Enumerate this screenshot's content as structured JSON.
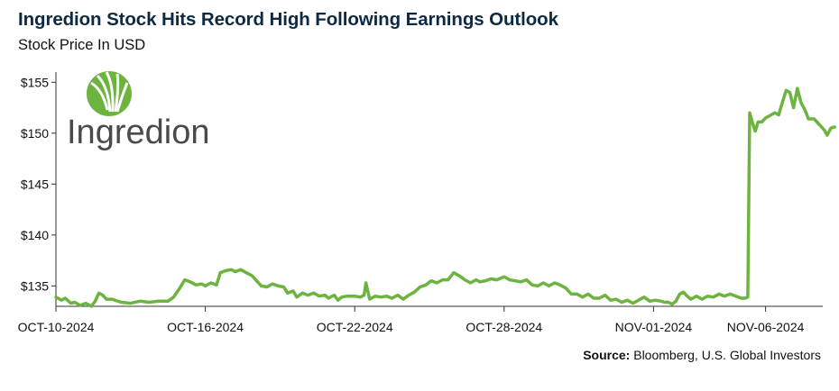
{
  "chart_data": {
    "type": "line",
    "title": "Ingredion Stock Hits Record High Following Earnings Outlook",
    "subtitle": "Stock Price In USD",
    "ylim": [
      133,
      156
    ],
    "yticks": [
      135,
      140,
      145,
      150,
      155
    ],
    "ytick_labels": [
      "$135",
      "$140",
      "$145",
      "$150",
      "$155"
    ],
    "xlim": [
      0,
      40
    ],
    "xtick_positions": [
      0,
      8,
      16,
      24,
      32,
      38
    ],
    "xtick_labels": [
      "OCT-10-2024",
      "OCT-16-2024",
      "OCT-22-2024",
      "OCT-28-2024",
      "NOV-01-2024",
      "NOV-06-2024"
    ],
    "grid": false,
    "line_color": "#6db33f",
    "series": [
      {
        "values": [
          [
            0.0,
            133.9
          ],
          [
            0.3,
            133.6
          ],
          [
            0.5,
            133.8
          ],
          [
            0.8,
            133.3
          ],
          [
            1.0,
            133.4
          ],
          [
            1.3,
            133.1
          ],
          [
            1.6,
            133.3
          ],
          [
            1.9,
            133.0
          ],
          [
            2.1,
            133.5
          ],
          [
            2.3,
            134.3
          ],
          [
            2.5,
            134.1
          ],
          [
            2.7,
            133.7
          ],
          [
            3.0,
            133.7
          ],
          [
            3.5,
            133.4
          ],
          [
            4.0,
            133.3
          ],
          [
            4.5,
            133.5
          ],
          [
            5.0,
            133.4
          ],
          [
            5.5,
            133.5
          ],
          [
            6.0,
            133.5
          ],
          [
            6.3,
            133.9
          ],
          [
            6.6,
            134.7
          ],
          [
            6.9,
            135.6
          ],
          [
            7.2,
            135.4
          ],
          [
            7.5,
            135.1
          ],
          [
            7.8,
            135.2
          ],
          [
            8.0,
            135.0
          ],
          [
            8.3,
            135.3
          ],
          [
            8.6,
            135.1
          ],
          [
            8.8,
            136.3
          ],
          [
            9.1,
            136.5
          ],
          [
            9.4,
            136.6
          ],
          [
            9.6,
            136.4
          ],
          [
            9.9,
            136.6
          ],
          [
            10.2,
            136.3
          ],
          [
            10.5,
            136.0
          ],
          [
            10.8,
            135.4
          ],
          [
            11.0,
            135.0
          ],
          [
            11.3,
            134.9
          ],
          [
            11.6,
            135.2
          ],
          [
            11.9,
            135.0
          ],
          [
            12.2,
            134.9
          ],
          [
            12.4,
            134.3
          ],
          [
            12.7,
            134.5
          ],
          [
            12.9,
            133.9
          ],
          [
            13.2,
            134.3
          ],
          [
            13.5,
            134.1
          ],
          [
            13.8,
            134.3
          ],
          [
            14.1,
            134.0
          ],
          [
            14.4,
            134.1
          ],
          [
            14.6,
            133.8
          ],
          [
            14.9,
            134.1
          ],
          [
            15.1,
            133.6
          ],
          [
            15.3,
            133.9
          ],
          [
            15.6,
            134.0
          ],
          [
            16.0,
            134.0
          ],
          [
            16.3,
            133.9
          ],
          [
            16.5,
            134.1
          ],
          [
            16.6,
            135.3
          ],
          [
            16.8,
            133.7
          ],
          [
            17.1,
            134.0
          ],
          [
            17.4,
            133.9
          ],
          [
            17.7,
            134.0
          ],
          [
            18.0,
            133.8
          ],
          [
            18.3,
            134.1
          ],
          [
            18.6,
            133.7
          ],
          [
            18.9,
            134.1
          ],
          [
            19.2,
            134.4
          ],
          [
            19.5,
            134.9
          ],
          [
            19.8,
            135.1
          ],
          [
            20.1,
            135.5
          ],
          [
            20.4,
            135.3
          ],
          [
            20.7,
            135.6
          ],
          [
            21.0,
            135.6
          ],
          [
            21.3,
            136.3
          ],
          [
            21.6,
            136.0
          ],
          [
            21.9,
            135.6
          ],
          [
            22.2,
            135.3
          ],
          [
            22.5,
            135.6
          ],
          [
            22.7,
            135.4
          ],
          [
            23.0,
            135.5
          ],
          [
            23.3,
            135.7
          ],
          [
            23.6,
            135.6
          ],
          [
            24.0,
            135.9
          ],
          [
            24.3,
            135.6
          ],
          [
            24.6,
            135.5
          ],
          [
            24.9,
            135.4
          ],
          [
            25.2,
            135.6
          ],
          [
            25.5,
            135.1
          ],
          [
            25.8,
            135.0
          ],
          [
            26.1,
            135.3
          ],
          [
            26.4,
            135.0
          ],
          [
            26.7,
            135.3
          ],
          [
            27.0,
            135.1
          ],
          [
            27.3,
            134.8
          ],
          [
            27.6,
            134.2
          ],
          [
            27.9,
            134.2
          ],
          [
            28.2,
            133.9
          ],
          [
            28.5,
            134.2
          ],
          [
            28.8,
            133.8
          ],
          [
            29.1,
            133.8
          ],
          [
            29.4,
            134.1
          ],
          [
            29.7,
            133.6
          ],
          [
            30.0,
            133.7
          ],
          [
            30.3,
            133.4
          ],
          [
            30.6,
            133.6
          ],
          [
            30.9,
            133.3
          ],
          [
            31.2,
            133.6
          ],
          [
            31.5,
            133.9
          ],
          [
            31.8,
            133.5
          ],
          [
            32.1,
            133.6
          ],
          [
            32.4,
            133.5
          ],
          [
            32.6,
            133.4
          ],
          [
            32.8,
            133.4
          ],
          [
            33.0,
            133.2
          ],
          [
            33.2,
            133.5
          ],
          [
            33.4,
            134.2
          ],
          [
            33.6,
            134.4
          ],
          [
            33.8,
            134.0
          ],
          [
            34.0,
            133.7
          ],
          [
            34.3,
            134.0
          ],
          [
            34.6,
            133.7
          ],
          [
            34.9,
            134.0
          ],
          [
            35.2,
            133.9
          ],
          [
            35.5,
            134.2
          ],
          [
            35.8,
            134.0
          ],
          [
            36.1,
            134.2
          ],
          [
            36.4,
            134.0
          ],
          [
            36.7,
            133.8
          ],
          [
            36.9,
            133.8
          ],
          [
            37.05,
            133.9
          ],
          [
            37.15,
            152.0
          ],
          [
            37.3,
            151.0
          ],
          [
            37.45,
            150.2
          ],
          [
            37.6,
            151.1
          ],
          [
            37.8,
            151.1
          ],
          [
            38.0,
            151.5
          ],
          [
            38.2,
            151.7
          ],
          [
            38.5,
            152.0
          ],
          [
            38.7,
            151.8
          ],
          [
            38.9,
            153.0
          ],
          [
            39.1,
            154.2
          ],
          [
            39.3,
            154.0
          ],
          [
            39.5,
            152.5
          ],
          [
            39.7,
            154.4
          ],
          [
            39.9,
            153.0
          ],
          [
            40.1,
            152.3
          ],
          [
            40.3,
            151.4
          ],
          [
            40.6,
            151.4
          ],
          [
            40.8,
            151.0
          ],
          [
            41.0,
            150.6
          ],
          [
            41.15,
            150.3
          ],
          [
            41.3,
            149.8
          ],
          [
            41.5,
            150.5
          ],
          [
            41.7,
            150.6
          ]
        ]
      }
    ]
  },
  "logo": {
    "text": "Ingredion"
  },
  "source": {
    "label": "Source:",
    "text": " Bloomberg, U.S. Global Investors"
  }
}
